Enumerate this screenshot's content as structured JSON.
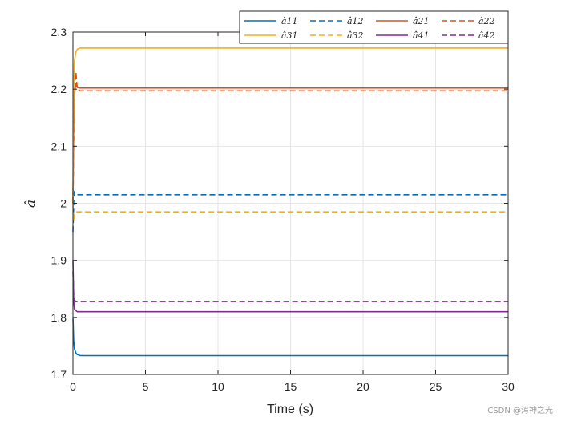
{
  "chart_data": {
    "type": "line",
    "title": "",
    "xlabel": "Time (s)",
    "ylabel": "â",
    "xlim": [
      0,
      30
    ],
    "ylim": [
      1.7,
      2.3
    ],
    "xticks": [
      0,
      5,
      10,
      15,
      20,
      25,
      30
    ],
    "xtick_labels": [
      "0",
      "5",
      "10",
      "15",
      "20",
      "25",
      "30"
    ],
    "yticks": [
      1.7,
      1.8,
      1.9,
      2.0,
      2.1,
      2.2,
      2.3
    ],
    "ytick_labels": [
      "1.7",
      "1.8",
      "1.9",
      "2",
      "2.1",
      "2.2",
      "2.3"
    ],
    "grid": true,
    "legend_position": "top-right",
    "series": [
      {
        "name": "â11",
        "base": "â",
        "sub": "11",
        "color": "#0072BD",
        "dash": false,
        "x": [
          0,
          0.05,
          0.1,
          0.2,
          0.3,
          0.5,
          30
        ],
        "y": [
          1.8,
          1.76,
          1.745,
          1.738,
          1.735,
          1.733,
          1.733
        ]
      },
      {
        "name": "â12",
        "base": "â",
        "sub": "12",
        "color": "#0072BD",
        "dash": true,
        "x": [
          0,
          0.05,
          0.1,
          0.2,
          0.3,
          0.5,
          30
        ],
        "y": [
          1.95,
          2.0,
          2.02,
          2.018,
          2.015,
          2.015,
          2.015
        ]
      },
      {
        "name": "â21",
        "base": "â",
        "sub": "21",
        "color": "#D95319",
        "dash": false,
        "x": [
          0,
          0.05,
          0.1,
          0.2,
          0.3,
          0.5,
          30
        ],
        "y": [
          2.0,
          2.12,
          2.19,
          2.21,
          2.203,
          2.202,
          2.202
        ]
      },
      {
        "name": "â22",
        "base": "â",
        "sub": "22",
        "color": "#D95319",
        "dash": true,
        "x": [
          0,
          0.05,
          0.1,
          0.2,
          0.3,
          0.5,
          30
        ],
        "y": [
          2.0,
          2.1,
          2.18,
          2.23,
          2.2,
          2.197,
          2.197
        ]
      },
      {
        "name": "â31",
        "base": "â",
        "sub": "31",
        "color": "#EDB120",
        "dash": false,
        "x": [
          0,
          0.05,
          0.1,
          0.2,
          0.3,
          0.5,
          30
        ],
        "y": [
          2.0,
          2.2,
          2.25,
          2.265,
          2.27,
          2.272,
          2.272
        ]
      },
      {
        "name": "â32",
        "base": "â",
        "sub": "32",
        "color": "#EDB120",
        "dash": true,
        "x": [
          0,
          0.05,
          0.1,
          0.2,
          0.3,
          0.5,
          30
        ],
        "y": [
          2.0,
          1.97,
          1.98,
          1.985,
          1.985,
          1.985,
          1.985
        ]
      },
      {
        "name": "â41",
        "base": "â",
        "sub": "41",
        "color": "#7E2F8E",
        "dash": false,
        "x": [
          0,
          0.05,
          0.1,
          0.2,
          0.3,
          0.5,
          30
        ],
        "y": [
          1.9,
          1.83,
          1.815,
          1.812,
          1.81,
          1.81,
          1.81
        ]
      },
      {
        "name": "â42",
        "base": "â",
        "sub": "42",
        "color": "#7E2F8E",
        "dash": true,
        "x": [
          0,
          0.05,
          0.1,
          0.2,
          0.3,
          0.5,
          30
        ],
        "y": [
          1.88,
          1.84,
          1.83,
          1.828,
          1.828,
          1.828,
          1.828
        ]
      }
    ]
  },
  "watermark": "CSDN @泻神之光"
}
